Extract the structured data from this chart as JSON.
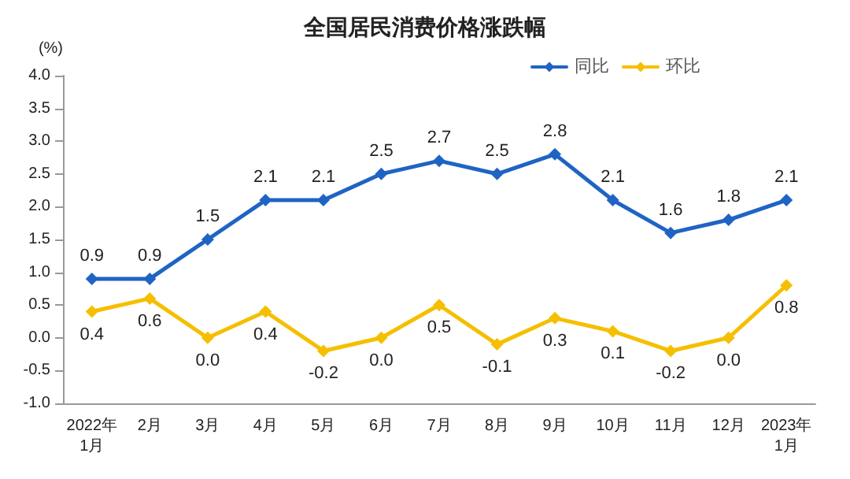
{
  "chart_data": {
    "type": "line",
    "title": "全国居民消费价格涨跌幅",
    "ylabel": "(%)",
    "categories": [
      "2022年\n1月",
      "2月",
      "3月",
      "4月",
      "5月",
      "6月",
      "7月",
      "8月",
      "9月",
      "10月",
      "11月",
      "12月",
      "2023年\n1月"
    ],
    "series": [
      {
        "name": "同比",
        "color": "#1f64c4",
        "values": [
          0.9,
          0.9,
          1.5,
          2.1,
          2.1,
          2.5,
          2.7,
          2.5,
          2.8,
          2.1,
          1.6,
          1.8,
          2.1
        ],
        "value_labels": [
          "0.9",
          "0.9",
          "1.5",
          "2.1",
          "2.1",
          "2.5",
          "2.7",
          "2.5",
          "2.8",
          "2.1",
          "1.6",
          "1.8",
          "2.1"
        ]
      },
      {
        "name": "环比",
        "color": "#f5bf00",
        "values": [
          0.4,
          0.6,
          0.0,
          0.4,
          -0.2,
          0.0,
          0.5,
          -0.1,
          0.3,
          0.1,
          -0.2,
          0.0,
          0.8
        ],
        "value_labels": [
          "0.4",
          "0.6",
          "0.0",
          "0.4",
          "-0.2",
          "0.0",
          "0.5",
          "-0.1",
          "0.3",
          "0.1",
          "-0.2",
          "0.0",
          "0.8"
        ]
      }
    ],
    "ylim": [
      -1.0,
      4.0
    ],
    "yticks": [
      {
        "value": -1,
        "label": "-1.0"
      },
      {
        "value": -0.5,
        "label": "-0.5"
      },
      {
        "value": 0,
        "label": "0.0"
      },
      {
        "value": 0.5,
        "label": "0.5"
      },
      {
        "value": 1,
        "label": "1.0"
      },
      {
        "value": 1.5,
        "label": "1.5"
      },
      {
        "value": 2,
        "label": "2.0"
      },
      {
        "value": 2.5,
        "label": "2.5"
      },
      {
        "value": 3,
        "label": "3.0"
      },
      {
        "value": 3.5,
        "label": "3.5"
      },
      {
        "value": 4,
        "label": "4.0"
      }
    ],
    "legend": "top right",
    "marker": "diamond",
    "line_style": "solid",
    "grid": false
  }
}
